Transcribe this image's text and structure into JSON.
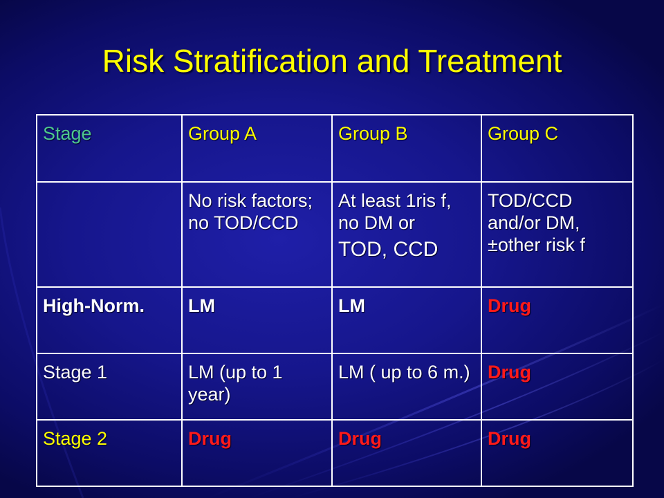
{
  "slide": {
    "title": "Risk Stratification and Treatment"
  },
  "colors": {
    "background": "#16168c",
    "title": "#ffff00",
    "stage_header": "#4ec78e",
    "group_header": "#ffff00",
    "drug": "#ff1a1a",
    "text": "#ffffff"
  },
  "table": {
    "header": {
      "stage": "Stage",
      "group_a": "Group A",
      "group_b": "Group B",
      "group_c": "Group C"
    },
    "descriptions": {
      "stage": "",
      "group_a": "No risk factors; no TOD/CCD",
      "group_b_line1": "At least 1ris f, no DM or",
      "group_b_line2": "TOD, CCD",
      "group_c": "TOD/CCD and/or DM, ±other risk f"
    },
    "rows": [
      {
        "stage": "High-Norm.",
        "group_a": "LM",
        "group_b": "LM",
        "group_c": "Drug"
      },
      {
        "stage": "Stage 1",
        "group_a": "LM (up to 1 year)",
        "group_b": "LM ( up to 6 m.)",
        "group_c": "Drug"
      },
      {
        "stage": "Stage 2",
        "group_a": "Drug",
        "group_b": "Drug",
        "group_c": "Drug"
      }
    ]
  }
}
